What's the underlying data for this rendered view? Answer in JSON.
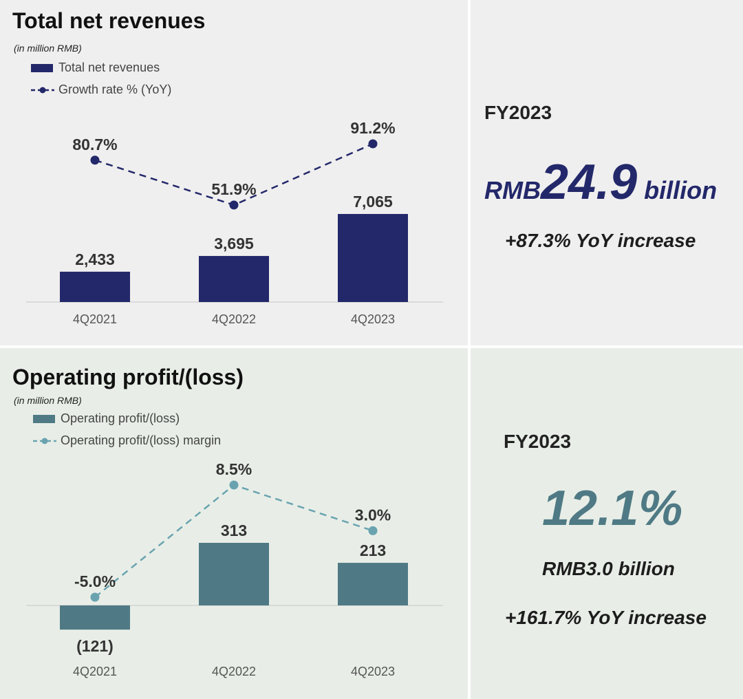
{
  "revenue": {
    "title": "Total net revenues",
    "unit": "(in million RMB)",
    "legend_bar": "Total net revenues",
    "legend_line": "Growth rate % (YoY)",
    "fy_label": "FY2023",
    "headline_prefix": "RMB",
    "headline_value": "24.9",
    "headline_suffix": " billion",
    "headline_note": "+87.3% YoY increase"
  },
  "profit": {
    "title": "Operating profit/(loss)",
    "unit": "(in million RMB)",
    "legend_bar": "Operating profit/(loss)",
    "legend_line": "Operating profit/(loss) margin",
    "fy_label": "FY2023",
    "headline_value": "12.1%",
    "headline_amount": "RMB3.0 billion",
    "headline_note": "+161.7% YoY increase"
  },
  "colors": {
    "navy": "#23286a",
    "teal": "#4f7a85",
    "teal_light": "#6aa3b0"
  },
  "chart_data": [
    {
      "type": "bar",
      "title": "Total net revenues",
      "categories": [
        "4Q2021",
        "4Q2022",
        "4Q2023"
      ],
      "series": [
        {
          "name": "Total net revenues",
          "values": [
            2433,
            3695,
            7065
          ],
          "labels": [
            "2,433",
            "3,695",
            "7,065"
          ]
        },
        {
          "name": "Growth rate % (YoY)",
          "type": "line",
          "values": [
            80.7,
            51.9,
            91.2
          ],
          "labels": [
            "80.7%",
            "51.9%",
            "91.2%"
          ]
        }
      ],
      "ylabel": "in million RMB"
    },
    {
      "type": "bar",
      "title": "Operating profit/(loss)",
      "categories": [
        "4Q2021",
        "4Q2022",
        "4Q2023"
      ],
      "series": [
        {
          "name": "Operating profit/(loss)",
          "values": [
            -121,
            313,
            213
          ],
          "labels": [
            "(121)",
            "313",
            "213"
          ]
        },
        {
          "name": "Operating profit/(loss) margin",
          "type": "line",
          "values": [
            -5.0,
            8.5,
            3.0
          ],
          "labels": [
            "-5.0%",
            "8.5%",
            "3.0%"
          ]
        }
      ],
      "ylabel": "in million RMB"
    }
  ]
}
